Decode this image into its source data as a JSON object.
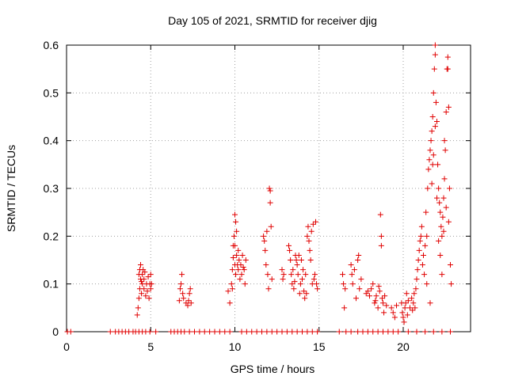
{
  "chart_data": {
    "type": "scatter",
    "title": "Day 105 of 2021, SRMTID for receiver djig",
    "xlabel": "GPS time / hours",
    "ylabel": "SRMTID / TECUs",
    "xlim": [
      0,
      24
    ],
    "ylim": [
      0,
      0.6
    ],
    "xticks": [
      0,
      5,
      10,
      15,
      20
    ],
    "xtick_labels": [
      "0",
      "5",
      "10",
      "15",
      "20"
    ],
    "yticks": [
      0,
      0.1,
      0.2,
      0.3,
      0.4,
      0.5,
      0.6
    ],
    "ytick_labels": [
      "0",
      "0.1",
      "0.2",
      "0.3",
      "0.4",
      "0.5",
      "0.6"
    ],
    "grid": true,
    "marker_color": "#e00000",
    "marker": "+",
    "series": [
      {
        "name": "SRMTID",
        "points": [
          [
            0.05,
            0
          ],
          [
            0.25,
            0
          ],
          [
            2.6,
            0
          ],
          [
            2.9,
            0
          ],
          [
            3.1,
            0
          ],
          [
            3.3,
            0
          ],
          [
            3.5,
            0
          ],
          [
            3.7,
            0
          ],
          [
            3.95,
            0
          ],
          [
            4.1,
            0
          ],
          [
            4.3,
            0
          ],
          [
            4.5,
            0
          ],
          [
            4.7,
            0
          ],
          [
            4.95,
            0
          ],
          [
            5.3,
            0
          ],
          [
            6.2,
            0
          ],
          [
            6.4,
            0
          ],
          [
            6.6,
            0
          ],
          [
            6.8,
            0
          ],
          [
            7.0,
            0
          ],
          [
            7.3,
            0
          ],
          [
            7.6,
            0
          ],
          [
            7.9,
            0
          ],
          [
            8.2,
            0
          ],
          [
            8.5,
            0
          ],
          [
            8.8,
            0
          ],
          [
            9.1,
            0
          ],
          [
            9.4,
            0
          ],
          [
            9.7,
            0
          ],
          [
            10.4,
            0
          ],
          [
            10.7,
            0
          ],
          [
            11.0,
            0
          ],
          [
            11.3,
            0
          ],
          [
            11.6,
            0
          ],
          [
            11.9,
            0
          ],
          [
            12.2,
            0
          ],
          [
            12.5,
            0
          ],
          [
            12.8,
            0
          ],
          [
            13.1,
            0
          ],
          [
            13.4,
            0
          ],
          [
            13.7,
            0
          ],
          [
            14.0,
            0
          ],
          [
            14.3,
            0
          ],
          [
            14.6,
            0
          ],
          [
            14.9,
            0
          ],
          [
            16.2,
            0
          ],
          [
            16.6,
            0
          ],
          [
            16.9,
            0
          ],
          [
            17.3,
            0
          ],
          [
            17.6,
            0
          ],
          [
            17.9,
            0
          ],
          [
            18.2,
            0
          ],
          [
            18.5,
            0
          ],
          [
            18.8,
            0
          ],
          [
            19.1,
            0
          ],
          [
            19.4,
            0
          ],
          [
            19.7,
            0
          ],
          [
            20.3,
            0
          ],
          [
            20.8,
            0
          ],
          [
            21.3,
            0
          ],
          [
            21.8,
            0
          ],
          [
            22.3,
            0
          ],
          [
            22.8,
            0
          ],
          [
            4.2,
            0.035
          ],
          [
            4.25,
            0.05
          ],
          [
            4.3,
            0.07
          ],
          [
            4.35,
            0.09
          ],
          [
            4.35,
            0.13
          ],
          [
            4.4,
            0.11
          ],
          [
            4.4,
            0.14
          ],
          [
            4.45,
            0.08
          ],
          [
            4.5,
            0.1
          ],
          [
            4.5,
            0.12
          ],
          [
            4.55,
            0.13
          ],
          [
            4.6,
            0.09
          ],
          [
            4.6,
            0.11
          ],
          [
            4.65,
            0.125
          ],
          [
            4.7,
            0.075
          ],
          [
            4.75,
            0.1
          ],
          [
            4.8,
            0.085
          ],
          [
            4.85,
            0.115
          ],
          [
            4.9,
            0.07
          ],
          [
            4.95,
            0.1
          ],
          [
            5.0,
            0.09
          ],
          [
            5.0,
            0.12
          ],
          [
            5.05,
            0.1
          ],
          [
            4.3,
            0.12
          ],
          [
            4.45,
            0.105
          ],
          [
            6.7,
            0.065
          ],
          [
            6.75,
            0.09
          ],
          [
            6.8,
            0.1
          ],
          [
            6.85,
            0.12
          ],
          [
            6.9,
            0.08
          ],
          [
            6.95,
            0.07
          ],
          [
            7.1,
            0.06
          ],
          [
            7.2,
            0.055
          ],
          [
            7.25,
            0.065
          ],
          [
            7.3,
            0.08
          ],
          [
            7.35,
            0.09
          ],
          [
            7.4,
            0.06
          ],
          [
            9.6,
            0.085
          ],
          [
            9.7,
            0.06
          ],
          [
            9.8,
            0.1
          ],
          [
            9.85,
            0.13
          ],
          [
            9.9,
            0.155
          ],
          [
            9.9,
            0.18
          ],
          [
            9.95,
            0.2
          ],
          [
            10.0,
            0.245
          ],
          [
            10.0,
            0.14
          ],
          [
            10.05,
            0.23
          ],
          [
            10.05,
            0.12
          ],
          [
            10.1,
            0.21
          ],
          [
            10.1,
            0.16
          ],
          [
            10.15,
            0.14
          ],
          [
            10.2,
            0.13
          ],
          [
            10.2,
            0.17
          ],
          [
            10.25,
            0.15
          ],
          [
            10.3,
            0.11
          ],
          [
            10.35,
            0.14
          ],
          [
            10.4,
            0.12
          ],
          [
            10.45,
            0.16
          ],
          [
            10.5,
            0.135
          ],
          [
            10.55,
            0.13
          ],
          [
            10.6,
            0.1
          ],
          [
            10.65,
            0.15
          ],
          [
            9.85,
            0.09
          ],
          [
            10.0,
            0.18
          ],
          [
            11.7,
            0.2
          ],
          [
            11.75,
            0.19
          ],
          [
            11.8,
            0.17
          ],
          [
            11.85,
            0.14
          ],
          [
            11.9,
            0.21
          ],
          [
            11.95,
            0.12
          ],
          [
            12.0,
            0.09
          ],
          [
            12.05,
            0.3
          ],
          [
            12.1,
            0.295
          ],
          [
            12.1,
            0.27
          ],
          [
            12.15,
            0.22
          ],
          [
            12.2,
            0.11
          ],
          [
            12.8,
            0.13
          ],
          [
            12.85,
            0.11
          ],
          [
            12.9,
            0.12
          ],
          [
            13.2,
            0.18
          ],
          [
            13.25,
            0.17
          ],
          [
            13.3,
            0.15
          ],
          [
            13.35,
            0.12
          ],
          [
            13.4,
            0.1
          ],
          [
            13.45,
            0.13
          ],
          [
            13.5,
            0.09
          ],
          [
            13.6,
            0.16
          ],
          [
            13.65,
            0.15
          ],
          [
            13.7,
            0.14
          ],
          [
            13.75,
            0.12
          ],
          [
            13.8,
            0.16
          ],
          [
            13.85,
            0.08
          ],
          [
            13.9,
            0.1
          ],
          [
            13.95,
            0.15
          ],
          [
            14.0,
            0.11
          ],
          [
            14.05,
            0.13
          ],
          [
            14.1,
            0.085
          ],
          [
            14.15,
            0.07
          ],
          [
            14.2,
            0.12
          ],
          [
            14.3,
            0.2
          ],
          [
            14.35,
            0.22
          ],
          [
            14.4,
            0.19
          ],
          [
            14.45,
            0.17
          ],
          [
            14.5,
            0.15
          ],
          [
            14.55,
            0.21
          ],
          [
            14.6,
            0.1
          ],
          [
            14.65,
            0.225
          ],
          [
            14.7,
            0.11
          ],
          [
            14.75,
            0.12
          ],
          [
            14.8,
            0.23
          ],
          [
            14.85,
            0.1
          ],
          [
            14.9,
            0.09
          ],
          [
            13.55,
            0.105
          ],
          [
            14.25,
            0.08
          ],
          [
            16.4,
            0.12
          ],
          [
            16.45,
            0.1
          ],
          [
            16.5,
            0.05
          ],
          [
            16.55,
            0.09
          ],
          [
            16.9,
            0.14
          ],
          [
            16.95,
            0.12
          ],
          [
            17.0,
            0.1
          ],
          [
            17.1,
            0.13
          ],
          [
            17.2,
            0.07
          ],
          [
            17.3,
            0.15
          ],
          [
            17.35,
            0.16
          ],
          [
            17.4,
            0.09
          ],
          [
            17.5,
            0.11
          ],
          [
            17.8,
            0.08
          ],
          [
            17.9,
            0.085
          ],
          [
            18.0,
            0.075
          ],
          [
            18.1,
            0.09
          ],
          [
            18.2,
            0.1
          ],
          [
            18.3,
            0.06
          ],
          [
            18.35,
            0.065
          ],
          [
            18.4,
            0.075
          ],
          [
            18.5,
            0.05
          ],
          [
            18.55,
            0.095
          ],
          [
            18.6,
            0.085
          ],
          [
            18.65,
            0.245
          ],
          [
            18.7,
            0.18
          ],
          [
            18.7,
            0.2
          ],
          [
            18.75,
            0.07
          ],
          [
            18.8,
            0.06
          ],
          [
            18.85,
            0.04
          ],
          [
            18.9,
            0.075
          ],
          [
            19.0,
            0.055
          ],
          [
            19.3,
            0.05
          ],
          [
            19.4,
            0.04
          ],
          [
            19.5,
            0.03
          ],
          [
            19.6,
            0.055
          ],
          [
            19.9,
            0.06
          ],
          [
            19.95,
            0.04
          ],
          [
            20.0,
            0.03
          ],
          [
            20.05,
            0.02
          ],
          [
            20.1,
            0.05
          ],
          [
            20.15,
            0.06
          ],
          [
            20.2,
            0.08
          ],
          [
            20.25,
            0.035
          ],
          [
            20.3,
            0.065
          ],
          [
            20.4,
            0.05
          ],
          [
            20.5,
            0.07
          ],
          [
            20.55,
            0.045
          ],
          [
            20.6,
            0.06
          ],
          [
            20.65,
            0.08
          ],
          [
            20.7,
            0.05
          ],
          [
            20.75,
            0.09
          ],
          [
            20.8,
            0.11
          ],
          [
            20.85,
            0.13
          ],
          [
            20.9,
            0.15
          ],
          [
            20.95,
            0.17
          ],
          [
            21.0,
            0.19
          ],
          [
            21.05,
            0.2
          ],
          [
            21.1,
            0.22
          ],
          [
            21.15,
            0.14
          ],
          [
            21.2,
            0.16
          ],
          [
            21.25,
            0.12
          ],
          [
            21.3,
            0.18
          ],
          [
            21.35,
            0.25
          ],
          [
            21.4,
            0.2
          ],
          [
            21.45,
            0.3
          ],
          [
            21.5,
            0.34
          ],
          [
            21.55,
            0.36
          ],
          [
            21.6,
            0.38
          ],
          [
            21.65,
            0.4
          ],
          [
            21.7,
            0.42
          ],
          [
            21.75,
            0.45
          ],
          [
            21.8,
            0.5
          ],
          [
            21.85,
            0.55
          ],
          [
            21.9,
            0.58
          ],
          [
            21.95,
            0.48
          ],
          [
            22.0,
            0.44
          ],
          [
            22.05,
            0.35
          ],
          [
            22.1,
            0.3
          ],
          [
            22.15,
            0.27
          ],
          [
            22.2,
            0.25
          ],
          [
            22.25,
            0.22
          ],
          [
            22.3,
            0.2
          ],
          [
            22.35,
            0.24
          ],
          [
            22.4,
            0.28
          ],
          [
            22.45,
            0.32
          ],
          [
            22.5,
            0.38
          ],
          [
            22.55,
            0.46
          ],
          [
            22.6,
            0.55
          ],
          [
            22.65,
            0.575
          ],
          [
            22.7,
            0.47
          ],
          [
            22.75,
            0.3
          ],
          [
            22.8,
            0.14
          ],
          [
            22.85,
            0.1
          ],
          [
            21.4,
            0.1
          ],
          [
            21.6,
            0.06
          ],
          [
            21.7,
            0.31
          ],
          [
            21.8,
            0.37
          ],
          [
            21.9,
            0.43
          ],
          [
            22.0,
            0.28
          ],
          [
            22.1,
            0.19
          ],
          [
            22.2,
            0.16
          ],
          [
            22.3,
            0.12
          ],
          [
            22.4,
            0.21
          ],
          [
            22.55,
            0.26
          ],
          [
            22.7,
            0.23
          ],
          [
            21.9,
            0.6
          ],
          [
            22.65,
            0.55
          ],
          [
            21.75,
            0.35
          ],
          [
            22.45,
            0.4
          ]
        ]
      }
    ]
  }
}
